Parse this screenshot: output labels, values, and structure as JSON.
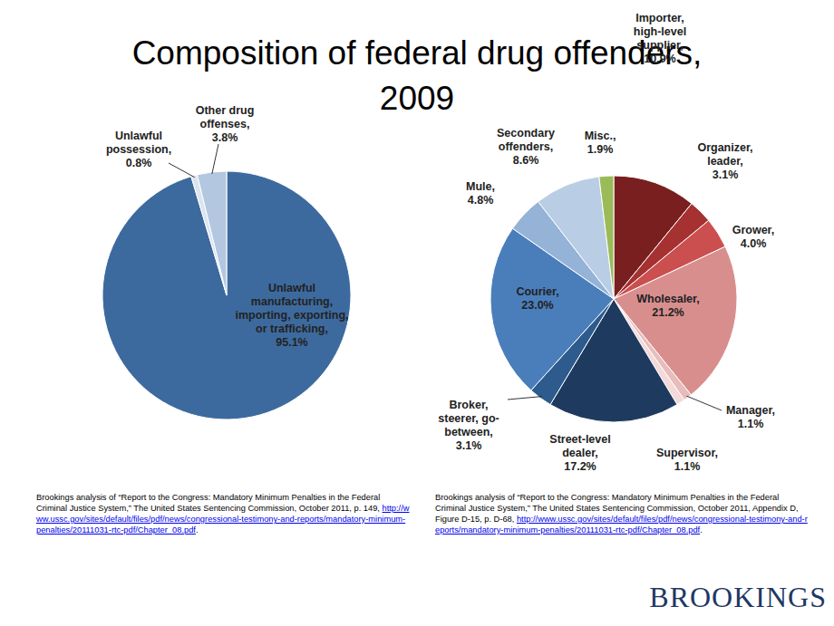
{
  "title": "Composition of federal drug offenders, 2009",
  "brand": "BROOKINGS",
  "chart_data": [
    {
      "type": "pie",
      "categories": [
        "Unlawful manufacturing, importing, exporting, or trafficking,",
        "Unlawful possession,",
        "Other drug offenses,"
      ],
      "values": [
        95.1,
        0.8,
        3.8
      ],
      "value_labels": [
        "95.1%",
        "0.8%",
        "3.8%"
      ],
      "colors": [
        "#3d6a9e",
        "#dbe4ef",
        "#b4c7e1"
      ],
      "data_labels": true,
      "source": {
        "text": "Brookings analysis of “Report to the Congress: Mandatory Minimum Penalties in the Federal Criminal Justice System,” The United States Sentencing Commission, October 2011, p. 149, ",
        "url": "http://www.ussc.gov/sites/default/files/pdf/news/congressional-testimony-and-reports/mandatory-minimum-penalties/20111031-rtc-pdf/Chapter_08.pdf",
        "after": "."
      }
    },
    {
      "type": "pie",
      "categories": [
        "Importer, high-level supplier,",
        "Organizer, leader,",
        "Grower,",
        "Wholesaler,",
        "Manager,",
        "Supervisor,",
        "Street-level dealer,",
        "Broker, steerer, go-between,",
        "Courier,",
        "Mule,",
        "Secondary offenders,",
        "Misc.,"
      ],
      "values": [
        10.9,
        3.1,
        4.0,
        21.2,
        1.1,
        1.1,
        17.2,
        3.1,
        23.0,
        4.8,
        8.6,
        1.9
      ],
      "value_labels": [
        "10.9%",
        "3.1%",
        "4.0%",
        "21.2%",
        "1.1%",
        "1.1%",
        "17.2%",
        "3.1%",
        "23.0%",
        "4.8%",
        "8.6%",
        "1.9%"
      ],
      "colors": [
        "#7a1f1f",
        "#a63131",
        "#cb4f4f",
        "#d98e8e",
        "#e9bcbc",
        "#f4d9d9",
        "#1f3a5f",
        "#2d5b8e",
        "#4a7ebb",
        "#95b3d7",
        "#b9cde5",
        "#9bbb59"
      ],
      "data_labels": true,
      "source": {
        "text": "Brookings analysis of “Report to the Congress: Mandatory Minimum Penalties in the Federal Criminal Justice System,” The United States Sentencing Commission, October 2011, Appendix D, Figure D-15, p. D-68, ",
        "url": "http://www.ussc.gov/sites/default/files/pdf/news/congressional-testimony-and-reports/mandatory-minimum-penalties/20111031-rtc-pdf/Chapter_08.pdf",
        "after": "."
      }
    }
  ]
}
